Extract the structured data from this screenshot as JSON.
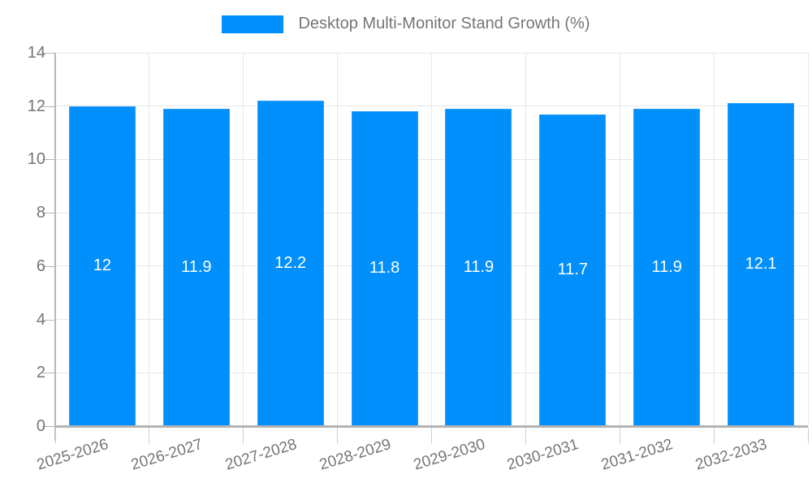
{
  "chart_data": {
    "type": "bar",
    "title": "",
    "legend_label": "Desktop Multi-Monitor Stand Growth (%)",
    "legend_position": "top",
    "categories": [
      "2025-2026",
      "2026-2027",
      "2027-2028",
      "2028-2029",
      "2029-2030",
      "2030-2031",
      "2031-2032",
      "2032-2033"
    ],
    "values": [
      12,
      11.9,
      12.2,
      11.8,
      11.9,
      11.7,
      11.9,
      12.1
    ],
    "value_labels": [
      "12",
      "11.9",
      "12.2",
      "11.8",
      "11.9",
      "11.7",
      "11.9",
      "12.1"
    ],
    "xlabel": "",
    "ylabel": "",
    "ylim": [
      0,
      14
    ],
    "ytick_step": 2,
    "ytick_labels": [
      "0",
      "2",
      "4",
      "6",
      "8",
      "10",
      "12",
      "14"
    ],
    "grid": true,
    "colors": {
      "bar": "#008FFB",
      "value_label": "#FFFFFF",
      "axis_text": "#757575",
      "gridline": "#E7E7E7",
      "axis_line": "#B6B6B6"
    }
  }
}
